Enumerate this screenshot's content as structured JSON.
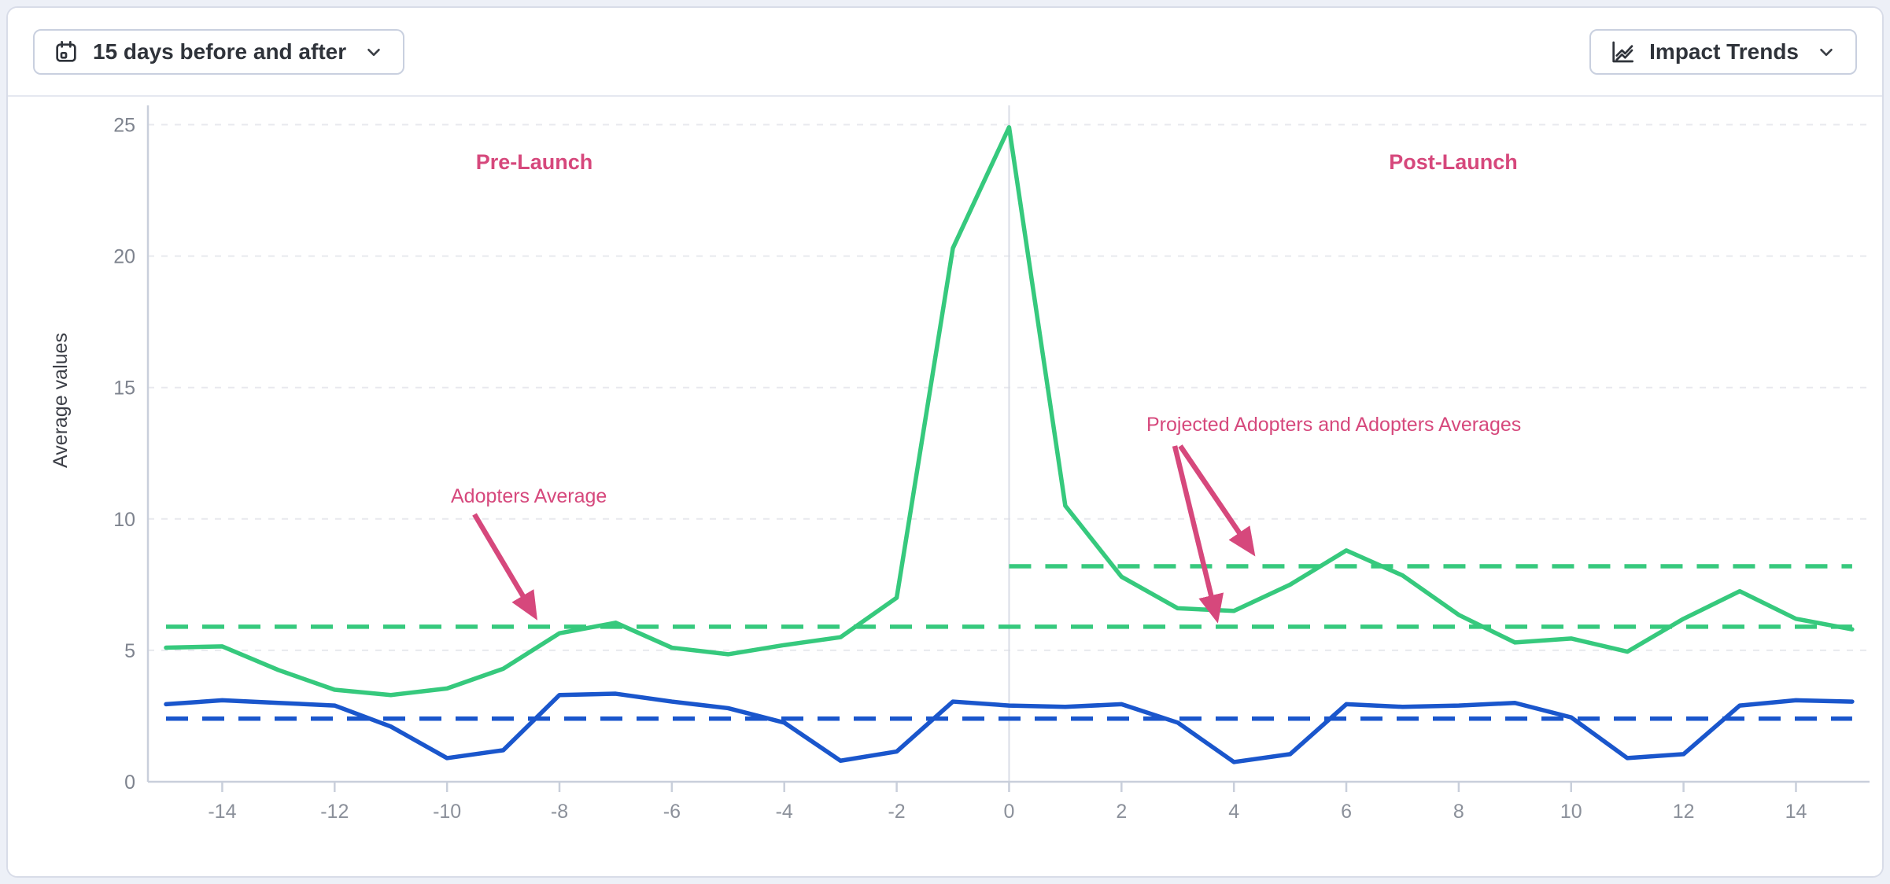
{
  "header": {
    "date_range_button": {
      "label": "15 days before and after",
      "icon": "calendar-icon"
    },
    "impact_trends_button": {
      "label": "Impact Trends",
      "icon": "trend-lines-icon"
    }
  },
  "chart_data": {
    "type": "line",
    "ylabel": "Average values",
    "ylim": [
      0,
      25.8
    ],
    "grid": "horizontal-dashed",
    "launch_x": 0,
    "x": [
      -15,
      -14,
      -13,
      -12,
      -11,
      -10,
      -9,
      -8,
      -7,
      -6,
      -5,
      -4,
      -3,
      -2,
      -1,
      0,
      1,
      2,
      3,
      4,
      5,
      6,
      7,
      8,
      9,
      10,
      11,
      12,
      13,
      14,
      15
    ],
    "xticks": [
      -14,
      -12,
      -10,
      -8,
      -6,
      -4,
      -2,
      0,
      2,
      4,
      6,
      8,
      10,
      12,
      14
    ],
    "yticks": [
      0,
      5,
      10,
      15,
      20,
      25
    ],
    "series": [
      {
        "name": "Adopters",
        "color": "#36c97d",
        "values": [
          5.1,
          5.15,
          4.25,
          3.5,
          3.3,
          3.55,
          4.3,
          5.65,
          6.05,
          5.1,
          4.85,
          5.2,
          5.5,
          7.0,
          20.3,
          24.9,
          10.5,
          7.8,
          6.6,
          6.5,
          7.5,
          8.8,
          7.85,
          6.35,
          5.3,
          5.45,
          4.95,
          6.2,
          7.25,
          6.2,
          5.8
        ]
      },
      {
        "name": "Projected Adopters",
        "color": "#1a56cc",
        "values": [
          2.95,
          3.1,
          3.0,
          2.9,
          2.1,
          0.9,
          1.2,
          3.3,
          3.35,
          3.05,
          2.8,
          2.25,
          0.8,
          1.15,
          3.05,
          2.9,
          2.85,
          2.95,
          2.25,
          0.75,
          1.05,
          2.95,
          2.85,
          2.9,
          3.0,
          2.45,
          0.9,
          1.05,
          2.9,
          3.1,
          3.05
        ]
      }
    ],
    "average_lines": [
      {
        "name": "Adopters Average",
        "color": "#36c97d",
        "value": 5.9,
        "x_start": -15,
        "x_end": 15
      },
      {
        "name": "Post-Launch Adopters Average",
        "color": "#36c97d",
        "value": 8.2,
        "x_start": 0,
        "x_end": 15
      },
      {
        "name": "Projected Adopters Average",
        "color": "#1a56cc",
        "value": 2.4,
        "x_start": -15,
        "x_end": 15
      }
    ],
    "annotations": {
      "color": "#d6487c",
      "pre_launch": "Pre-Launch",
      "post_launch": "Post-Launch",
      "adopters_average": "Adopters Average",
      "projected_note": "Projected Adopters and Adopters Averages"
    }
  }
}
